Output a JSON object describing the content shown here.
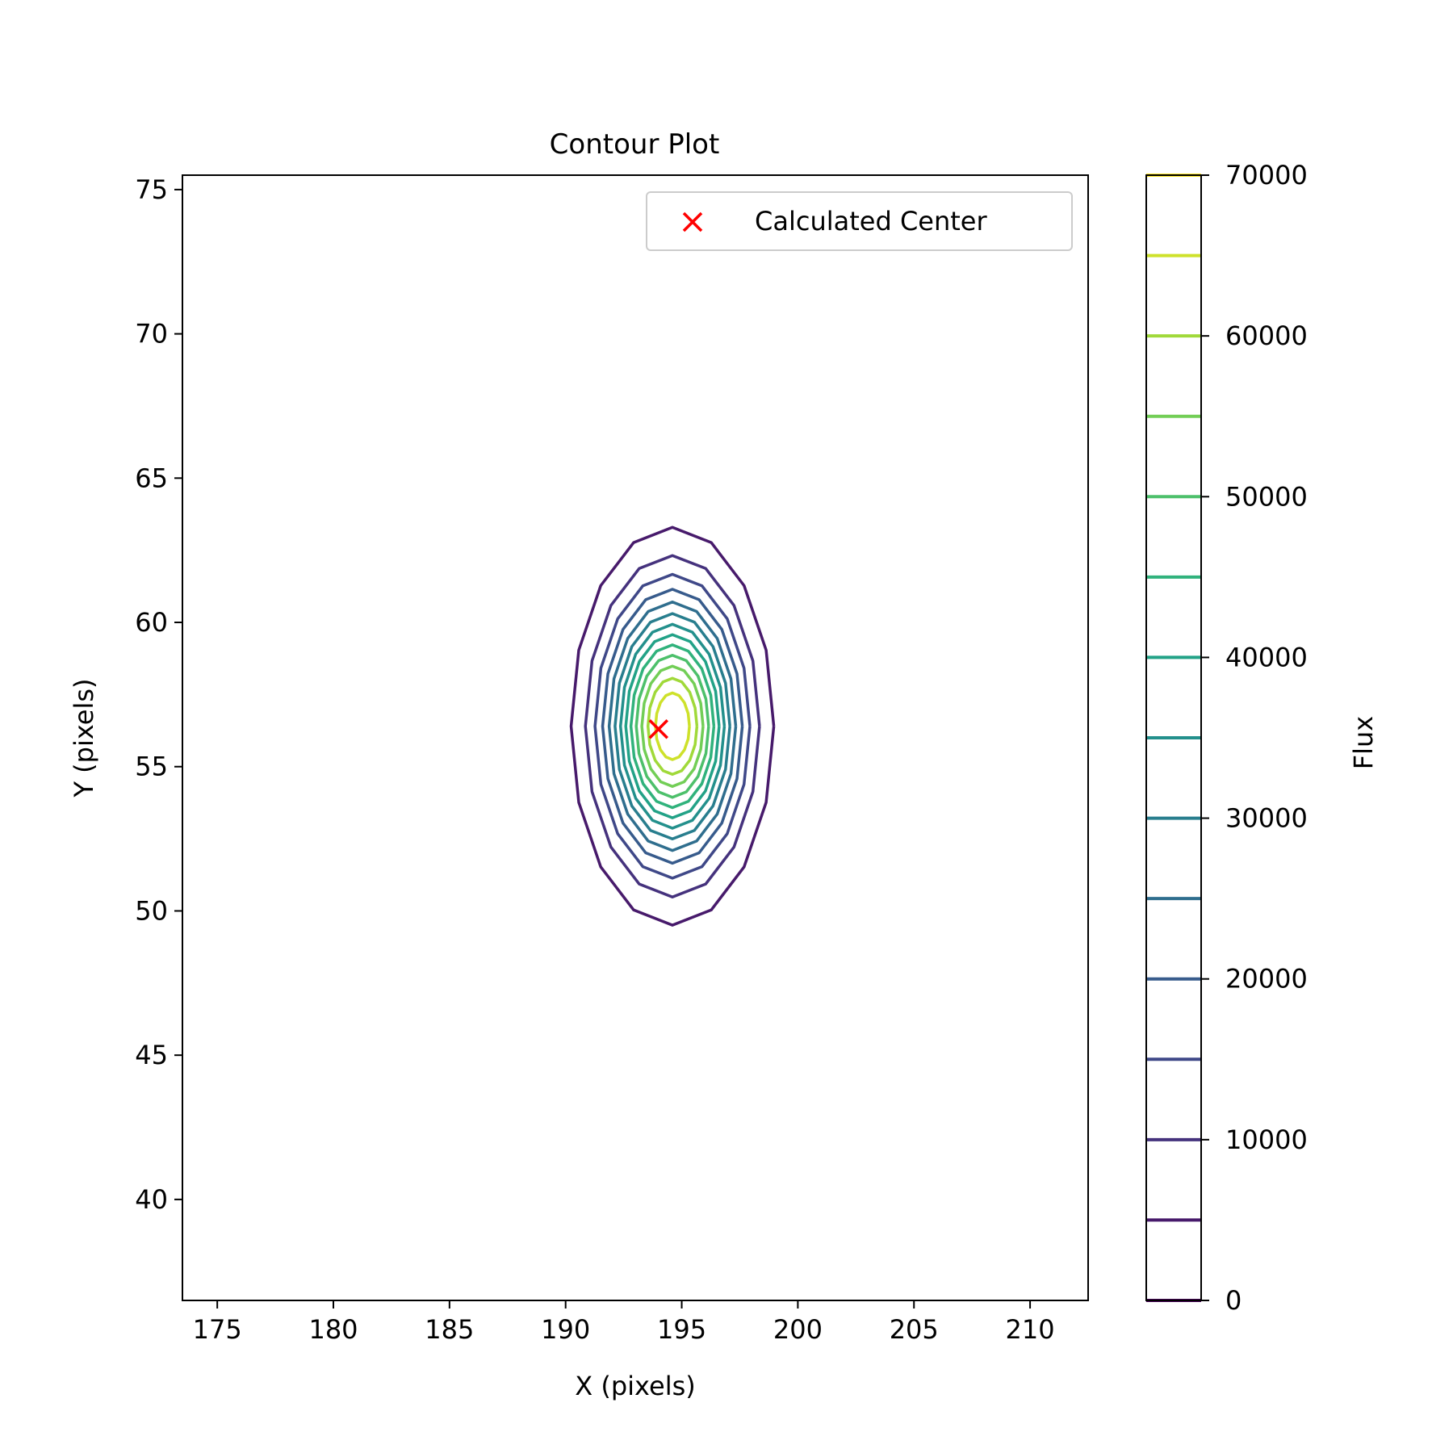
{
  "chart_data": {
    "type": "contour",
    "title": "Contour Plot",
    "xlabel": "X (pixels)",
    "ylabel": "Y (pixels)",
    "xlim": [
      173.5,
      212.5
    ],
    "ylim": [
      36.5,
      75.5
    ],
    "xticks": [
      175,
      180,
      185,
      190,
      195,
      200,
      205,
      210
    ],
    "yticks": [
      40,
      45,
      50,
      55,
      60,
      65,
      70,
      75
    ],
    "grid": false,
    "legend": {
      "position": "top-right",
      "entries": [
        {
          "label": "Calculated Center",
          "marker": "x",
          "color": "#ff0000"
        }
      ]
    },
    "center": {
      "x": 194.0,
      "y": 56.3
    },
    "source": {
      "x": 194.6,
      "y": 56.4,
      "peak_flux": 70000,
      "sigma_x": 1.9,
      "sigma_y": 3.0
    },
    "contour_levels": [
      0,
      5000,
      10000,
      15000,
      20000,
      25000,
      30000,
      35000,
      40000,
      45000,
      50000,
      55000,
      60000,
      65000,
      70000
    ],
    "colorbar": {
      "label": "Flux",
      "range": [
        0,
        70000
      ],
      "ticks": [
        0,
        10000,
        20000,
        30000,
        40000,
        50000,
        60000,
        70000
      ],
      "tick_labels": [
        "0",
        "10000",
        "20000",
        "30000",
        "40000",
        "50000",
        "60000",
        "70000"
      ]
    },
    "colormap": "viridis"
  }
}
